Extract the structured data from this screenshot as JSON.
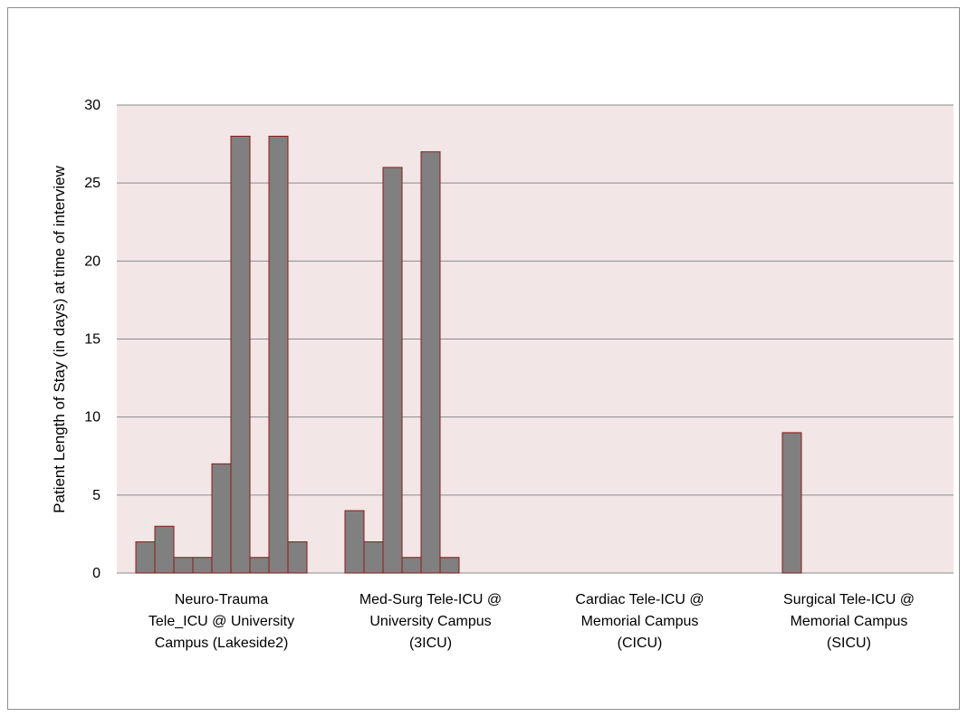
{
  "colors": {
    "plot_background": "#f2e6e6",
    "bar_fill": "#808080",
    "bar_stroke": "#8b1a1a",
    "gridline": "#8c8c8c"
  },
  "chart_data": {
    "type": "bar",
    "title": "",
    "xlabel": "",
    "ylabel": "Patient Length of Stay (in days) at time of interview",
    "ylim": [
      0,
      30
    ],
    "yticks": [
      0,
      5,
      10,
      15,
      20,
      25,
      30
    ],
    "grid": true,
    "legend": "none",
    "categories": [
      [
        "Neuro-Trauma",
        "Tele_ICU @ University",
        "Campus (Lakeside2)"
      ],
      [
        "Med-Surg Tele-ICU @",
        "University Campus",
        "(3ICU)"
      ],
      [
        "Cardiac Tele-ICU @",
        "Memorial Campus",
        "(CICU)"
      ],
      [
        "Surgical Tele-ICU @",
        "Memorial Campus",
        "(SICU)"
      ]
    ],
    "series": [
      {
        "values": [
          2,
          4,
          null,
          null
        ]
      },
      {
        "values": [
          3,
          2,
          null,
          9
        ]
      },
      {
        "values": [
          1,
          26,
          null,
          null
        ]
      },
      {
        "values": [
          1,
          1,
          null,
          null
        ]
      },
      {
        "values": [
          7,
          27,
          null,
          null
        ]
      },
      {
        "values": [
          28,
          1,
          null,
          null
        ]
      },
      {
        "values": [
          1,
          null,
          null,
          null
        ]
      },
      {
        "values": [
          28,
          null,
          null,
          null
        ]
      },
      {
        "values": [
          2,
          null,
          null,
          null
        ]
      }
    ]
  }
}
